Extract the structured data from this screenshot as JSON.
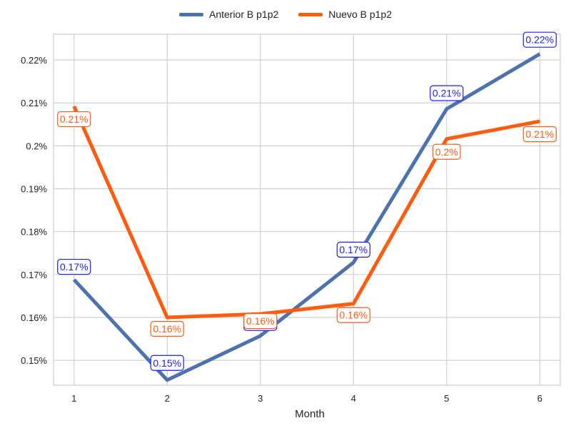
{
  "chart_data": {
    "type": "line",
    "xlabel": "Month",
    "ylabel": "",
    "x": [
      1,
      2,
      3,
      4,
      5,
      6
    ],
    "x_tick_labels": [
      "1",
      "2",
      "3",
      "4",
      "5",
      "6"
    ],
    "ylim": [
      0.1442,
      0.226
    ],
    "y_ticks": [
      0.15,
      0.16,
      0.17,
      0.18,
      0.19,
      0.2,
      0.21,
      0.22
    ],
    "y_tick_labels": [
      "0.15%",
      "0.16%",
      "0.17%",
      "0.18%",
      "0.19%",
      "0.2%",
      "0.21%",
      "0.22%"
    ],
    "grid": true,
    "legend_placement": "top-center",
    "series": [
      {
        "name": "Anterior B p1p2",
        "color": "#4C72B0",
        "label_color": "#1a1aff",
        "values": [
          0.1688,
          0.1454,
          0.1557,
          0.1728,
          0.2086,
          0.2214
        ],
        "data_labels": [
          "0.17%",
          "0.15%",
          "0.16%",
          "0.17%",
          "0.21%",
          "0.22%"
        ]
      },
      {
        "name": "Nuevo B p1p2",
        "color": "#FF5A0E",
        "label_color": "#FF5A0E",
        "values": [
          0.2092,
          0.16,
          0.1608,
          0.1632,
          0.2016,
          0.2057
        ],
        "data_labels": [
          "0.21%",
          "0.16%",
          "0.16%",
          "0.16%",
          "0.2%",
          "0.21%"
        ]
      }
    ]
  }
}
